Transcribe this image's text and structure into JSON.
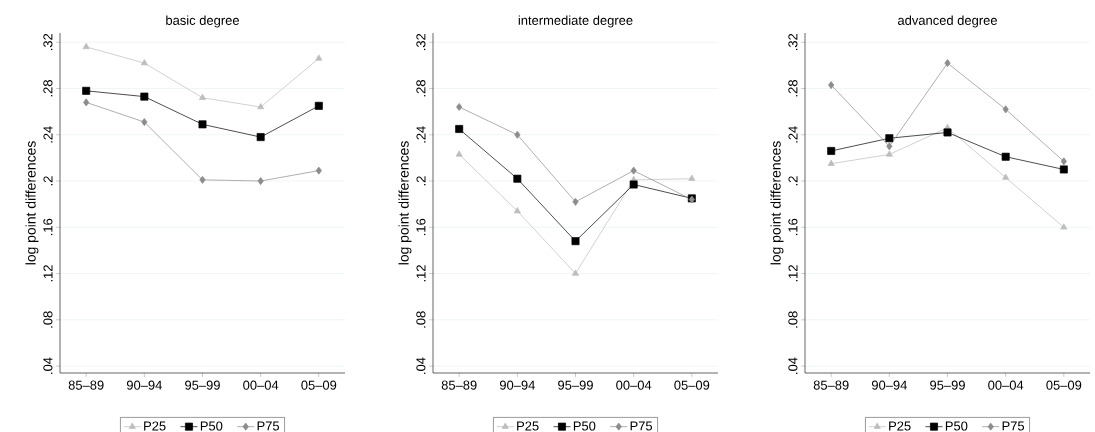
{
  "chart_data": [
    {
      "type": "line",
      "title": "basic degree",
      "ylabel": "log point differences",
      "categories": [
        "85–89",
        "90–94",
        "95–99",
        "00–04",
        "05–09"
      ],
      "series": [
        {
          "name": "P25",
          "color": "#bdbdbd",
          "marker": "triangle",
          "values": [
            0.316,
            0.302,
            0.272,
            0.264,
            0.306
          ]
        },
        {
          "name": "P50",
          "color": "#000000",
          "marker": "square",
          "values": [
            0.278,
            0.273,
            0.249,
            0.238,
            0.265
          ]
        },
        {
          "name": "P75",
          "color": "#8c8c8c",
          "marker": "diamond",
          "values": [
            0.268,
            0.251,
            0.201,
            0.2,
            0.209
          ]
        }
      ],
      "ylim": [
        0.034,
        0.328
      ],
      "yticks": [
        {
          "value": 0.04,
          "label": ".04"
        },
        {
          "value": 0.08,
          "label": ".08"
        },
        {
          "value": 0.12,
          "label": ".12"
        },
        {
          "value": 0.16,
          "label": ".16"
        },
        {
          "value": 0.2,
          "label": ".2"
        },
        {
          "value": 0.24,
          "label": ".24"
        },
        {
          "value": 0.28,
          "label": ".28"
        },
        {
          "value": 0.32,
          "label": ".32"
        }
      ],
      "grid": "y",
      "legend": "bottom",
      "line_style": "solid"
    },
    {
      "type": "line",
      "title": "intermediate degree",
      "ylabel": "log point differences",
      "categories": [
        "85–89",
        "90–94",
        "95–99",
        "00–04",
        "05–09"
      ],
      "series": [
        {
          "name": "P25",
          "color": "#bdbdbd",
          "marker": "triangle",
          "values": [
            0.223,
            0.174,
            0.12,
            0.201,
            0.202
          ]
        },
        {
          "name": "P50",
          "color": "#000000",
          "marker": "square",
          "values": [
            0.245,
            0.202,
            0.148,
            0.197,
            0.185
          ]
        },
        {
          "name": "P75",
          "color": "#8c8c8c",
          "marker": "diamond",
          "values": [
            0.264,
            0.24,
            0.182,
            0.209,
            0.184
          ]
        }
      ],
      "ylim": [
        0.034,
        0.328
      ],
      "yticks": [
        {
          "value": 0.04,
          "label": ".04"
        },
        {
          "value": 0.08,
          "label": ".08"
        },
        {
          "value": 0.12,
          "label": ".12"
        },
        {
          "value": 0.16,
          "label": ".16"
        },
        {
          "value": 0.2,
          "label": ".2"
        },
        {
          "value": 0.24,
          "label": ".24"
        },
        {
          "value": 0.28,
          "label": ".28"
        },
        {
          "value": 0.32,
          "label": ".32"
        }
      ],
      "grid": "y",
      "legend": "bottom",
      "line_style": "solid"
    },
    {
      "type": "line",
      "title": "advanced degree",
      "ylabel": "log point differences",
      "categories": [
        "85–89",
        "90–94",
        "95–99",
        "00–04",
        "05–09"
      ],
      "series": [
        {
          "name": "P25",
          "color": "#bdbdbd",
          "marker": "triangle",
          "values": [
            0.215,
            0.223,
            0.246,
            0.203,
            0.16
          ]
        },
        {
          "name": "P50",
          "color": "#000000",
          "marker": "square",
          "values": [
            0.226,
            0.237,
            0.242,
            0.221,
            0.21
          ]
        },
        {
          "name": "P75",
          "color": "#8c8c8c",
          "marker": "diamond",
          "values": [
            0.283,
            0.23,
            0.302,
            0.262,
            0.217
          ]
        }
      ],
      "ylim": [
        0.034,
        0.328
      ],
      "yticks": [
        {
          "value": 0.04,
          "label": ".04"
        },
        {
          "value": 0.08,
          "label": ".08"
        },
        {
          "value": 0.12,
          "label": ".12"
        },
        {
          "value": 0.16,
          "label": ".16"
        },
        {
          "value": 0.2,
          "label": ".2"
        },
        {
          "value": 0.24,
          "label": ".24"
        },
        {
          "value": 0.28,
          "label": ".28"
        },
        {
          "value": 0.32,
          "label": ".32"
        }
      ],
      "grid": "y",
      "legend": "bottom",
      "line_style": "solid"
    }
  ]
}
